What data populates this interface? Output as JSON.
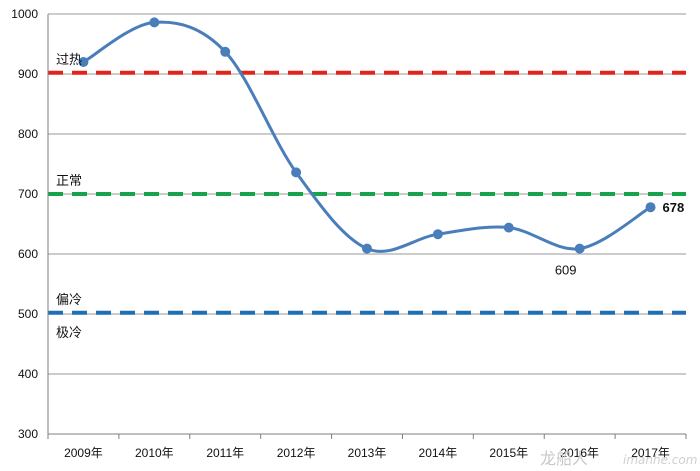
{
  "chart_data": {
    "type": "line",
    "title": "",
    "xlabel": "",
    "ylabel": "",
    "ylim": [
      300,
      1000
    ],
    "yticks": [
      300,
      400,
      500,
      600,
      700,
      800,
      900,
      1000
    ],
    "categories": [
      "2009年",
      "2010年",
      "2011年",
      "2012年",
      "2013年",
      "2014年",
      "2015年",
      "2016年",
      "2017年"
    ],
    "series": [
      {
        "values": [
          920,
          986,
          937,
          736,
          609,
          633,
          644,
          609,
          678
        ],
        "color": "#4a7ebb"
      }
    ],
    "data_labels": [
      {
        "index": 7,
        "text": "609"
      },
      {
        "index": 8,
        "text": "678"
      }
    ],
    "reference_lines": [
      {
        "value": 902,
        "label": "过热",
        "color": "#e2231a"
      },
      {
        "value": 700,
        "label": "正常",
        "color": "#17a34a"
      },
      {
        "value": 502,
        "label": "偏冷",
        "color": "#1f6fb5"
      }
    ],
    "extra_labels": [
      {
        "value": 502,
        "text": "极冷"
      }
    ],
    "grid": true
  },
  "watermark": {
    "text": "龙船人",
    "subtext": "imanhe.com"
  }
}
